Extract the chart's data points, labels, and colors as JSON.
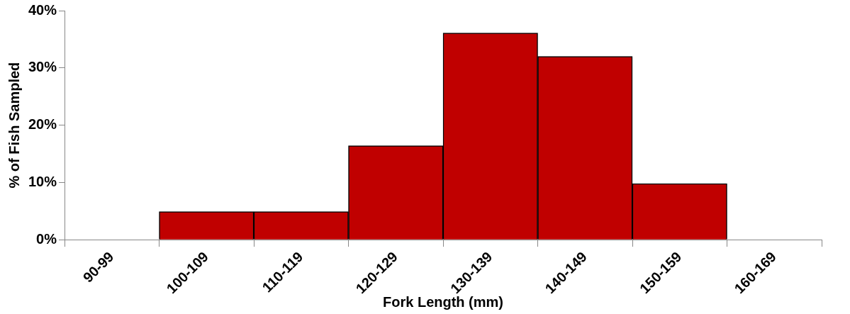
{
  "chart_data": {
    "type": "bar",
    "xlabel": "Fork Length (mm)",
    "ylabel": "% of Fish Sampled",
    "categories": [
      "90-99",
      "100-109",
      "110-119",
      "120-129",
      "130-139",
      "140-149",
      "150-159",
      "160-169"
    ],
    "values": [
      0,
      4.9,
      4.9,
      16.4,
      36.1,
      32,
      9.8,
      0
    ],
    "color": "#c00000",
    "ylim": [
      0,
      40
    ],
    "yticks": [
      {
        "value": 0,
        "label": "0%"
      },
      {
        "value": 10,
        "label": "10%"
      },
      {
        "value": 20,
        "label": "20%"
      },
      {
        "value": 30,
        "label": "30%"
      },
      {
        "value": 40,
        "label": "40%"
      }
    ],
    "grid": false,
    "legend": false
  }
}
